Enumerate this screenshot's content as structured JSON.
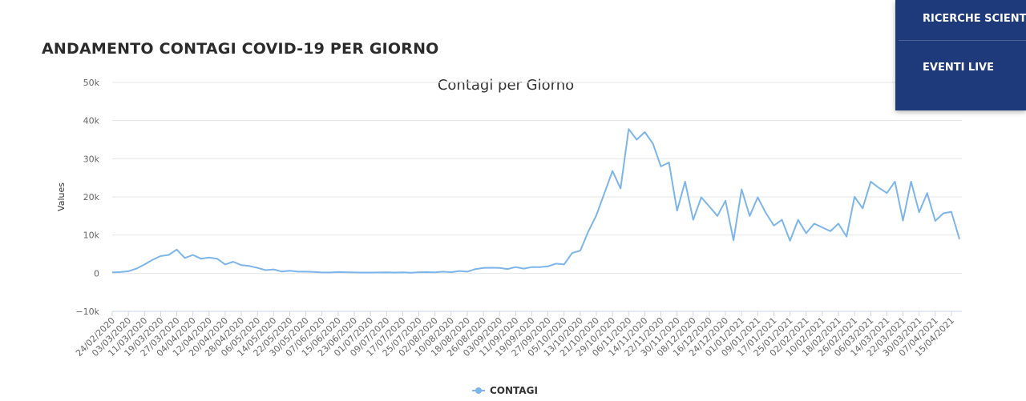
{
  "header": {
    "title": "ANDAMENTO CONTAGI COVID-19 PER GIORNO"
  },
  "menu": {
    "items": [
      "RICERCHE SCIENTIFICHE",
      "EVENTI LIVE"
    ]
  },
  "chart_data": {
    "type": "line",
    "title": "Contagi per Giorno",
    "y_label": "Values",
    "categories": [
      "24/02/2020",
      null,
      "03/03/2020",
      null,
      "11/03/2020",
      null,
      "19/03/2020",
      null,
      "27/03/2020",
      null,
      "04/04/2020",
      null,
      "12/04/2020",
      null,
      "20/04/2020",
      null,
      "28/04/2020",
      null,
      "06/05/2020",
      null,
      "14/05/2020",
      null,
      "22/05/2020",
      null,
      "30/05/2020",
      null,
      "07/06/2020",
      null,
      "15/06/2020",
      null,
      "23/06/2020",
      null,
      "01/07/2020",
      null,
      "09/07/2020",
      null,
      "17/07/2020",
      null,
      "25/07/2020",
      null,
      "02/08/2020",
      null,
      "10/08/2020",
      null,
      "18/08/2020",
      null,
      "26/08/2020",
      null,
      "03/09/2020",
      null,
      "11/09/2020",
      null,
      "19/09/2020",
      null,
      "27/09/2020",
      null,
      "05/10/2020",
      null,
      "13/10/2020",
      null,
      "21/10/2020",
      null,
      "29/10/2020",
      null,
      "06/11/2020",
      null,
      "14/11/2020",
      null,
      "22/11/2020",
      null,
      "30/11/2020",
      null,
      "08/12/2020",
      null,
      "16/12/2020",
      null,
      "24/12/2020",
      null,
      "01/01/2021",
      null,
      "09/01/2021",
      null,
      "17/01/2021",
      null,
      "25/01/2021",
      null,
      "02/02/2021",
      null,
      "10/02/2021",
      null,
      "18/02/2021",
      null,
      "26/02/2021",
      null,
      "06/03/2021",
      null,
      "14/03/2021",
      null,
      "22/03/2021",
      null,
      "30/03/2021",
      null,
      "07/04/2021",
      null,
      "15/04/2021",
      null
    ],
    "series": [
      {
        "name": "CONTAGI",
        "color": "#7cb5ec",
        "values": [
          200,
          300,
          500,
          1200,
          2300,
          3500,
          4500,
          4800,
          6200,
          4000,
          4800,
          3800,
          4100,
          3800,
          2300,
          3000,
          2100,
          1900,
          1400,
          800,
          1000,
          450,
          650,
          400,
          400,
          320,
          200,
          200,
          300,
          250,
          190,
          170,
          180,
          190,
          230,
          170,
          230,
          130,
          250,
          290,
          240,
          400,
          260,
          570,
          400,
          1070,
          1370,
          1440,
          1400,
          1100,
          1600,
          1200,
          1600,
          1600,
          1800,
          2500,
          2300,
          5300,
          5900,
          10900,
          15200,
          21000,
          26800,
          22200,
          37800,
          35000,
          37000,
          34000,
          28000,
          29000,
          16400,
          24000,
          14000,
          19900,
          17500,
          15000,
          19000,
          8600,
          22000,
          15000,
          19900,
          15800,
          12500,
          14000,
          8500,
          14000,
          10500,
          13000,
          12000,
          11000,
          13000,
          9600,
          20000,
          17000,
          24000,
          22400,
          21000,
          24000,
          13800,
          24000,
          16000,
          21000,
          13700,
          15700,
          16100,
          8900
        ]
      }
    ],
    "ylim": [
      -10000,
      50000
    ],
    "yticks": [
      {
        "value": -10000,
        "label": "−10k"
      },
      0,
      {
        "value": 10000,
        "label": "10k"
      },
      {
        "value": 20000,
        "label": "20k"
      },
      {
        "value": 30000,
        "label": "30k"
      },
      {
        "value": 40000,
        "label": "40k"
      },
      {
        "value": 50000,
        "label": "50k"
      }
    ],
    "grid": true,
    "legend": "bottom"
  }
}
